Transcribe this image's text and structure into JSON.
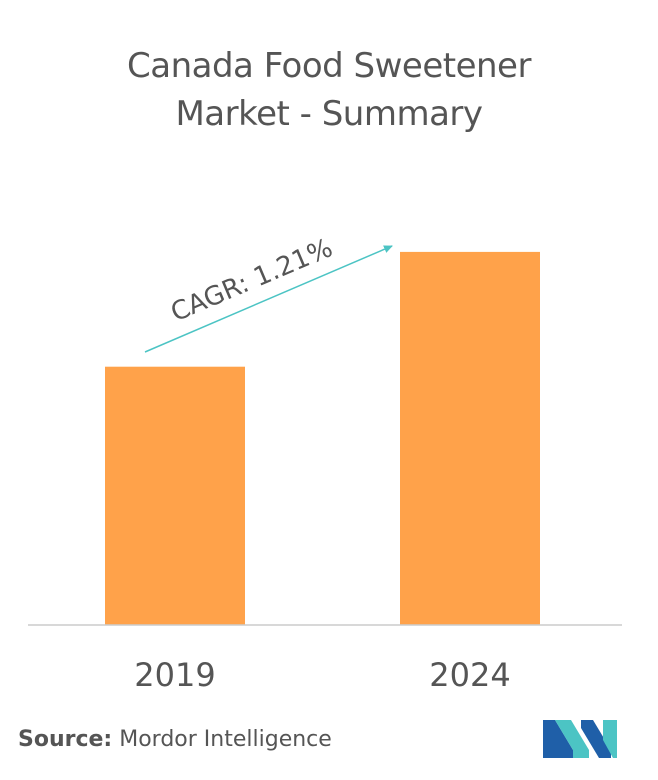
{
  "title_line1": "Canada Food Sweetener",
  "title_line2": "Market - Summary",
  "chart_data": {
    "type": "bar",
    "categories": [
      "2019",
      "2024"
    ],
    "values": [
      63,
      91
    ],
    "ylim": [
      0,
      100
    ],
    "bar_color": "#FFA24A",
    "baseline_color": "#cccccc",
    "annotation": {
      "text": "CAGR: 1.21%",
      "arrow_color": "#4CC4C4"
    },
    "grid": false
  },
  "source": {
    "label": "Source:",
    "text": "Mordor Intelligence"
  },
  "logo": {
    "icon": "mordor-intelligence-logo",
    "colors": [
      "#1F5FA8",
      "#4CC4C4"
    ]
  }
}
